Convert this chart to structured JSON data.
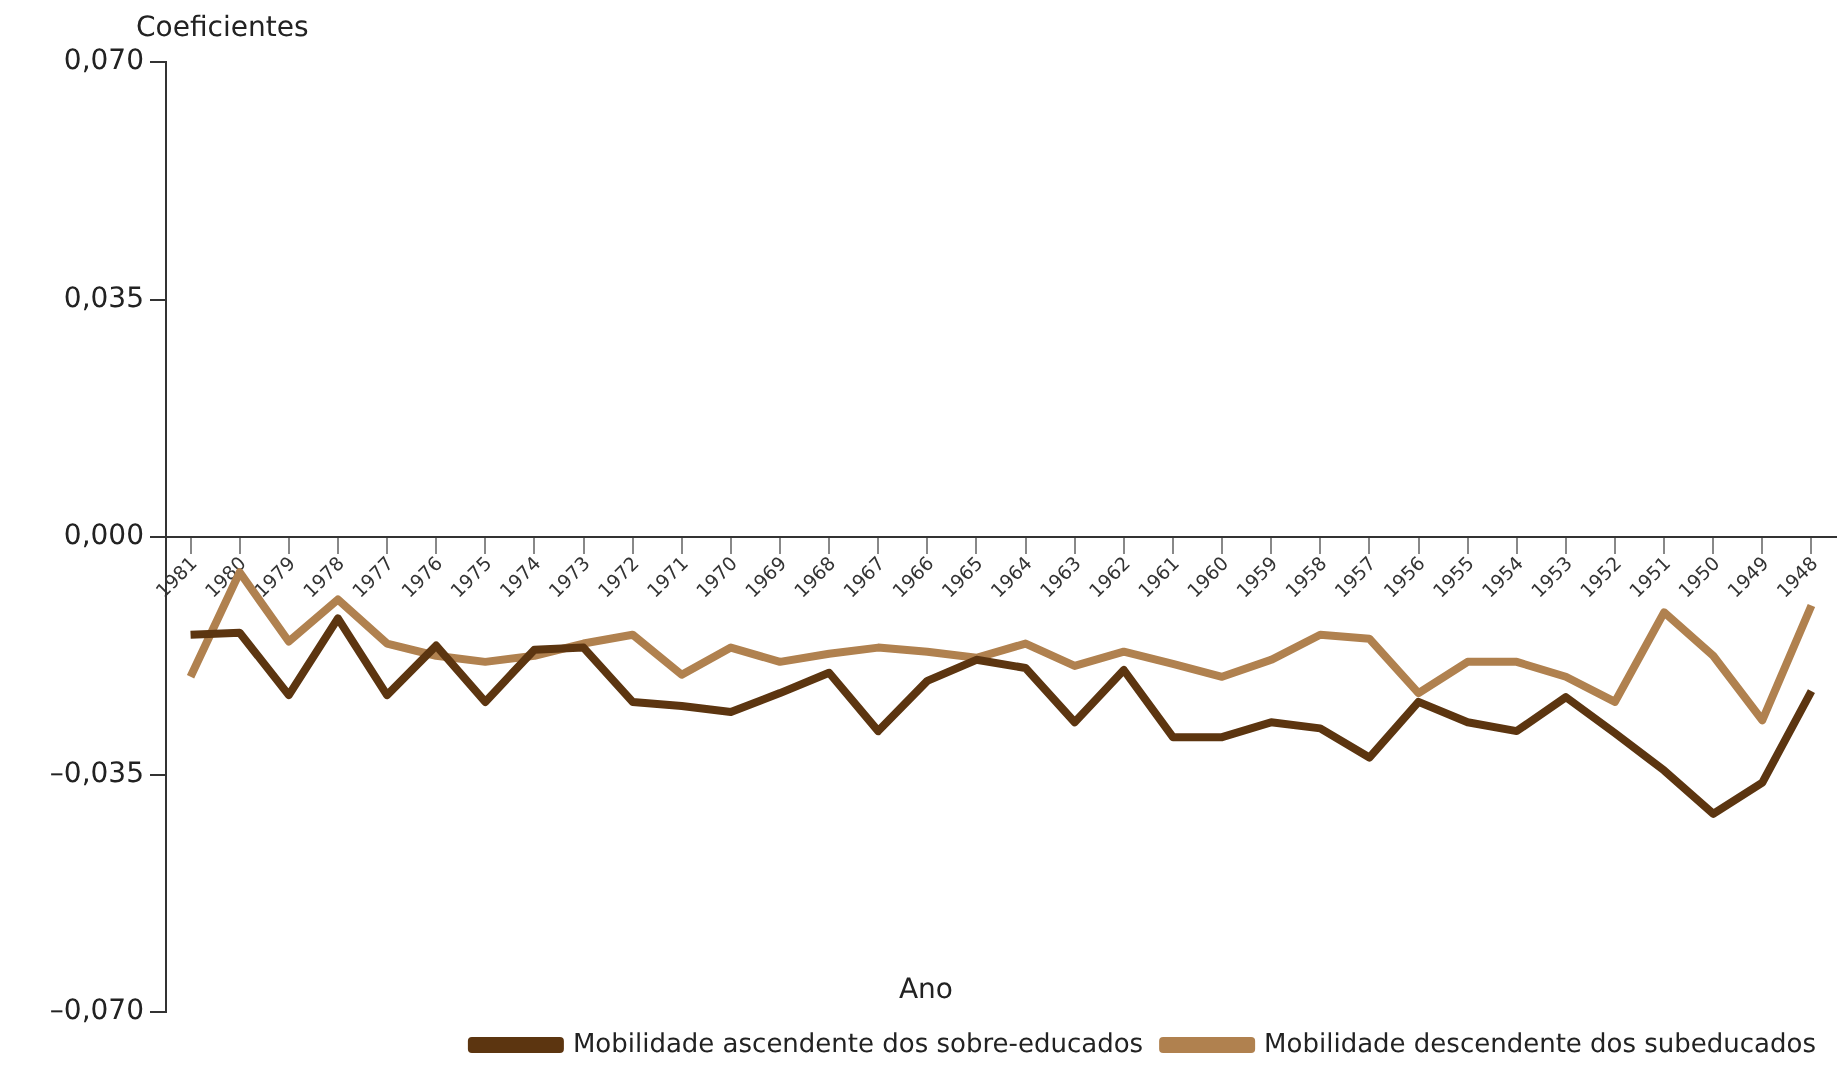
{
  "chart_data": {
    "type": "line",
    "ylabel": "Coeficientes",
    "xlabel": "Ano",
    "categories": [
      "1981",
      "1980",
      "1979",
      "1978",
      "1977",
      "1976",
      "1975",
      "1974",
      "1973",
      "1972",
      "1971",
      "1970",
      "1969",
      "1968",
      "1967",
      "1966",
      "1965",
      "1964",
      "1963",
      "1962",
      "1961",
      "1960",
      "1959",
      "1958",
      "1957",
      "1956",
      "1955",
      "1954",
      "1953",
      "1952",
      "1951",
      "1950",
      "1949",
      "1948"
    ],
    "series": [
      {
        "name": "Mobilidade ascendente dos sobre-educados",
        "color": "#5c3510",
        "values": [
          -0.0144,
          -0.0141,
          -0.0233,
          -0.012,
          -0.0233,
          -0.016,
          -0.0243,
          -0.0166,
          -0.0163,
          -0.0243,
          -0.0249,
          -0.0258,
          -0.023,
          -0.02,
          -0.0286,
          -0.0212,
          -0.0181,
          -0.0193,
          -0.0273,
          -0.0196,
          -0.0295,
          -0.0295,
          -0.0273,
          -0.0282,
          -0.0325,
          -0.0243,
          -0.0273,
          -0.0286,
          -0.0236,
          -0.0289,
          -0.0344,
          -0.0408,
          -0.0362,
          -0.0227
        ]
      },
      {
        "name": "Mobilidade descendente dos subeducados",
        "color": "#b0814f",
        "values": [
          -0.0206,
          -0.0052,
          -0.0154,
          -0.0092,
          -0.0157,
          -0.0175,
          -0.0184,
          -0.0175,
          -0.0157,
          -0.0144,
          -0.0203,
          -0.0163,
          -0.0184,
          -0.0172,
          -0.0163,
          -0.0169,
          -0.0178,
          -0.0157,
          -0.019,
          -0.0169,
          -0.0187,
          -0.0206,
          -0.0181,
          -0.0144,
          -0.015,
          -0.023,
          -0.0184,
          -0.0184,
          -0.0206,
          -0.0243,
          -0.0111,
          -0.0175,
          -0.027,
          -0.0101
        ]
      }
    ],
    "ylim": [
      -0.07,
      0.07
    ],
    "yticks": [
      {
        "value": 0.07,
        "label": "0,070"
      },
      {
        "value": 0.035,
        "label": "0,035"
      },
      {
        "value": 0,
        "label": "0,000"
      },
      {
        "value": -0.035,
        "label": "–0,035"
      },
      {
        "value": -0.07,
        "label": "–0,070"
      }
    ],
    "grid": false,
    "legend": "bottom",
    "marker": "none",
    "line_style": "solid"
  }
}
